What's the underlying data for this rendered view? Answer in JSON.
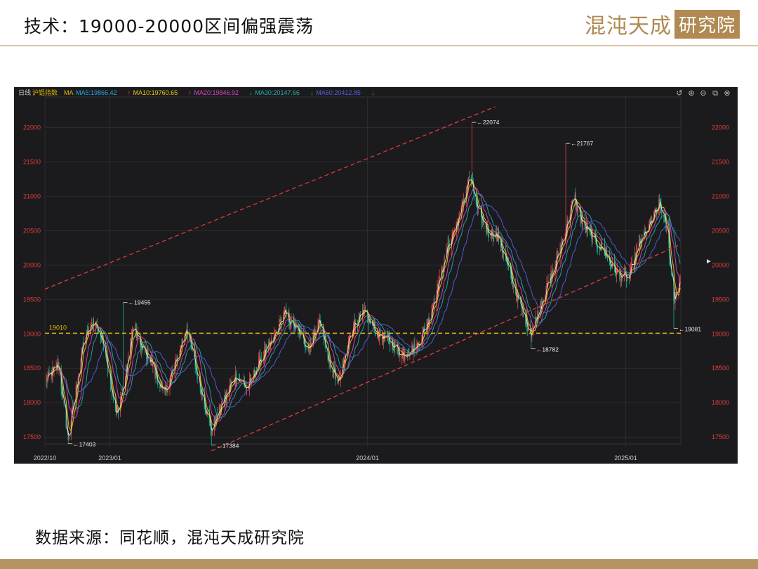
{
  "slide": {
    "title": "技术：19000-20000区间偏强震荡",
    "source": "数据来源：同花顺，混沌天成研究院",
    "logo_script": "混沌天成",
    "logo_box": "研究院"
  },
  "colors": {
    "background": "#1b1b1e",
    "grid": "#2c2c30",
    "axis_text": "#e03c3c",
    "x_axis_text": "#c8c8c8",
    "up": "#e84545",
    "down": "#1bb38a",
    "ma5": "#e8e8e8",
    "ma10": "#f1c40f",
    "ma20": "#e040c8",
    "ma30": "#1fb0a8",
    "ma60": "#5560e0",
    "channel": "#e03c3c",
    "support": "#e6b800",
    "accent": "#b08a52"
  },
  "chart_data": {
    "type": "candlestick",
    "header": {
      "period": "日线",
      "instrument": "沪铝指数",
      "ma_label": "MA",
      "ma_entries": [
        {
          "label": "MA5:19866.42",
          "arrow": "",
          "color": "#2aa5e0"
        },
        {
          "label": "MA10:19760.65",
          "arrow": "↑",
          "color": "#f1c40f"
        },
        {
          "label": "MA20:19846.92",
          "arrow": "↑",
          "color": "#e040c8"
        },
        {
          "label": "MA30:20147.66",
          "arrow": "↓",
          "color": "#1fb0a8"
        },
        {
          "label": "MA60:20412.85",
          "arrow": "↓",
          "color": "#5560e0"
        }
      ],
      "trailing_arrow": "↓"
    },
    "y_range": [
      17400,
      22300
    ],
    "y_ticks": [
      "22000",
      "21500",
      "21000",
      "20500",
      "20000",
      "19500",
      "19000",
      "18500",
      "18000",
      "17500"
    ],
    "y_tick_values": [
      22000,
      21500,
      21000,
      20500,
      20000,
      19500,
      19000,
      18500,
      18000,
      17500
    ],
    "x_range": [
      "2022-10-01",
      "2025-03-20"
    ],
    "x_ticks": [
      {
        "label": "2022/10",
        "date": "2022-10-01"
      },
      {
        "label": "2023/01",
        "date": "2023-01-01"
      },
      {
        "label": "2024/01",
        "date": "2024-01-01"
      },
      {
        "label": "2025/01",
        "date": "2025-01-01"
      }
    ],
    "close_path": [
      [
        "2022-10-01",
        18300
      ],
      [
        "2022-10-20",
        18550
      ],
      [
        "2022-11-03",
        17480
      ],
      [
        "2022-11-25",
        18900
      ],
      [
        "2022-12-10",
        19200
      ],
      [
        "2022-12-25",
        18800
      ],
      [
        "2023-01-10",
        17800
      ],
      [
        "2023-01-22",
        18300
      ],
      [
        "2023-02-03",
        19100
      ],
      [
        "2023-02-15",
        18800
      ],
      [
        "2023-03-01",
        18600
      ],
      [
        "2023-03-18",
        18100
      ],
      [
        "2023-04-05",
        18600
      ],
      [
        "2023-04-20",
        19100
      ],
      [
        "2023-05-05",
        18400
      ],
      [
        "2023-05-25",
        17600
      ],
      [
        "2023-06-10",
        18000
      ],
      [
        "2023-06-28",
        18400
      ],
      [
        "2023-07-15",
        18200
      ],
      [
        "2023-08-01",
        18600
      ],
      [
        "2023-08-20",
        18900
      ],
      [
        "2023-09-05",
        19300
      ],
      [
        "2023-09-20",
        19100
      ],
      [
        "2023-10-10",
        18800
      ],
      [
        "2023-10-25",
        19200
      ],
      [
        "2023-11-10",
        18500
      ],
      [
        "2023-11-22",
        18300
      ],
      [
        "2023-12-10",
        19100
      ],
      [
        "2023-12-28",
        19300
      ],
      [
        "2024-01-15",
        19000
      ],
      [
        "2024-02-01",
        18900
      ],
      [
        "2024-02-20",
        18700
      ],
      [
        "2024-03-10",
        18800
      ],
      [
        "2024-03-28",
        19200
      ],
      [
        "2024-04-10",
        19700
      ],
      [
        "2024-04-25",
        20300
      ],
      [
        "2024-05-10",
        20700
      ],
      [
        "2024-05-25",
        21300
      ],
      [
        "2024-06-05",
        20800
      ],
      [
        "2024-06-20",
        20500
      ],
      [
        "2024-07-05",
        20400
      ],
      [
        "2024-07-20",
        19900
      ],
      [
        "2024-08-05",
        19400
      ],
      [
        "2024-08-20",
        19000
      ],
      [
        "2024-09-05",
        19500
      ],
      [
        "2024-09-20",
        19900
      ],
      [
        "2024-10-05",
        20400
      ],
      [
        "2024-10-20",
        21000
      ],
      [
        "2024-11-01",
        20600
      ],
      [
        "2024-11-15",
        20400
      ],
      [
        "2024-12-01",
        20200
      ],
      [
        "2024-12-18",
        19900
      ],
      [
        "2025-01-05",
        19800
      ],
      [
        "2025-01-20",
        20300
      ],
      [
        "2025-02-05",
        20600
      ],
      [
        "2025-02-18",
        20900
      ],
      [
        "2025-03-01",
        20500
      ],
      [
        "2025-03-10",
        19500
      ],
      [
        "2025-03-20",
        19800
      ]
    ],
    "moving_averages": [
      {
        "name": "MA5",
        "color": "#e8e8e8",
        "lag_days": 4,
        "smooth": 3
      },
      {
        "name": "MA10",
        "color": "#f1c40f",
        "lag_days": 8,
        "smooth": 6
      },
      {
        "name": "MA20",
        "color": "#e040c8",
        "lag_days": 15,
        "smooth": 12
      },
      {
        "name": "MA30",
        "color": "#1fb0a8",
        "lag_days": 22,
        "smooth": 18
      },
      {
        "name": "MA60",
        "color": "#5560e0",
        "lag_days": 40,
        "smooth": 32
      }
    ],
    "annotations": [
      {
        "label": "22074",
        "date": "2024-05-28",
        "value": 22074,
        "side": "right",
        "valign": "top"
      },
      {
        "label": "21767",
        "date": "2024-10-08",
        "value": 21767,
        "side": "right",
        "valign": "top"
      },
      {
        "label": "19455",
        "date": "2023-01-20",
        "value": 19455,
        "side": "right",
        "valign": "top"
      },
      {
        "label": "17403",
        "date": "2022-11-03",
        "value": 17403,
        "side": "right",
        "valign": "bottom"
      },
      {
        "label": "17384",
        "date": "2023-05-25",
        "value": 17384,
        "side": "right",
        "valign": "bottom"
      },
      {
        "label": "18782",
        "date": "2024-08-20",
        "value": 18782,
        "side": "right",
        "valign": "bottom"
      },
      {
        "label": "19081",
        "date": "2025-03-10",
        "value": 19081,
        "side": "right",
        "valign": "bottom"
      }
    ],
    "support_line": {
      "label": "19010",
      "value": 19010
    },
    "channel_lines": [
      {
        "from": [
          "2022-10-01",
          19650
        ],
        "to": [
          "2024-06-30",
          22300
        ]
      },
      {
        "from": [
          "2023-05-25",
          17300
        ],
        "to": [
          "2025-03-20",
          20300
        ]
      }
    ]
  }
}
